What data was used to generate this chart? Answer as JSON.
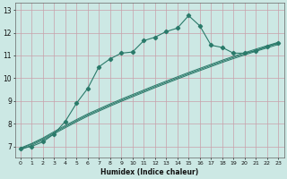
{
  "xlabel": "Humidex (Indice chaleur)",
  "xlim": [
    -0.5,
    23.5
  ],
  "ylim": [
    6.5,
    13.3
  ],
  "xticks": [
    0,
    1,
    2,
    3,
    4,
    5,
    6,
    7,
    8,
    9,
    10,
    11,
    12,
    13,
    14,
    15,
    16,
    17,
    18,
    19,
    20,
    21,
    22,
    23
  ],
  "yticks": [
    7,
    8,
    9,
    10,
    11,
    12,
    13
  ],
  "bg_color": "#cce8e4",
  "grid_color": "#c8a0aa",
  "line_color": "#2a7a6a",
  "main_line_x": [
    0,
    1,
    2,
    3,
    4,
    5,
    6,
    7,
    8,
    9,
    10,
    11,
    12,
    13,
    14,
    15,
    16,
    17,
    18,
    19,
    20,
    21,
    22,
    23
  ],
  "main_line_y": [
    6.9,
    7.0,
    7.2,
    7.55,
    8.1,
    8.9,
    9.55,
    10.5,
    10.85,
    11.1,
    11.15,
    11.65,
    11.8,
    12.05,
    12.2,
    12.75,
    12.3,
    11.45,
    11.35,
    11.1,
    11.1,
    11.2,
    11.4,
    11.55
  ],
  "band1_y": [
    6.85,
    7.05,
    7.28,
    7.55,
    7.82,
    8.08,
    8.33,
    8.55,
    8.77,
    8.98,
    9.18,
    9.38,
    9.58,
    9.77,
    9.96,
    10.15,
    10.33,
    10.51,
    10.69,
    10.86,
    11.02,
    11.18,
    11.33,
    11.48
  ],
  "band2_y": [
    6.9,
    7.1,
    7.33,
    7.6,
    7.87,
    8.13,
    8.38,
    8.6,
    8.82,
    9.03,
    9.23,
    9.43,
    9.63,
    9.82,
    10.01,
    10.2,
    10.38,
    10.56,
    10.74,
    10.91,
    11.07,
    11.23,
    11.38,
    11.53
  ],
  "band3_y": [
    6.93,
    7.13,
    7.37,
    7.65,
    7.92,
    8.18,
    8.43,
    8.65,
    8.87,
    9.08,
    9.28,
    9.48,
    9.68,
    9.87,
    10.06,
    10.25,
    10.43,
    10.61,
    10.79,
    10.96,
    11.12,
    11.28,
    11.43,
    11.58
  ]
}
